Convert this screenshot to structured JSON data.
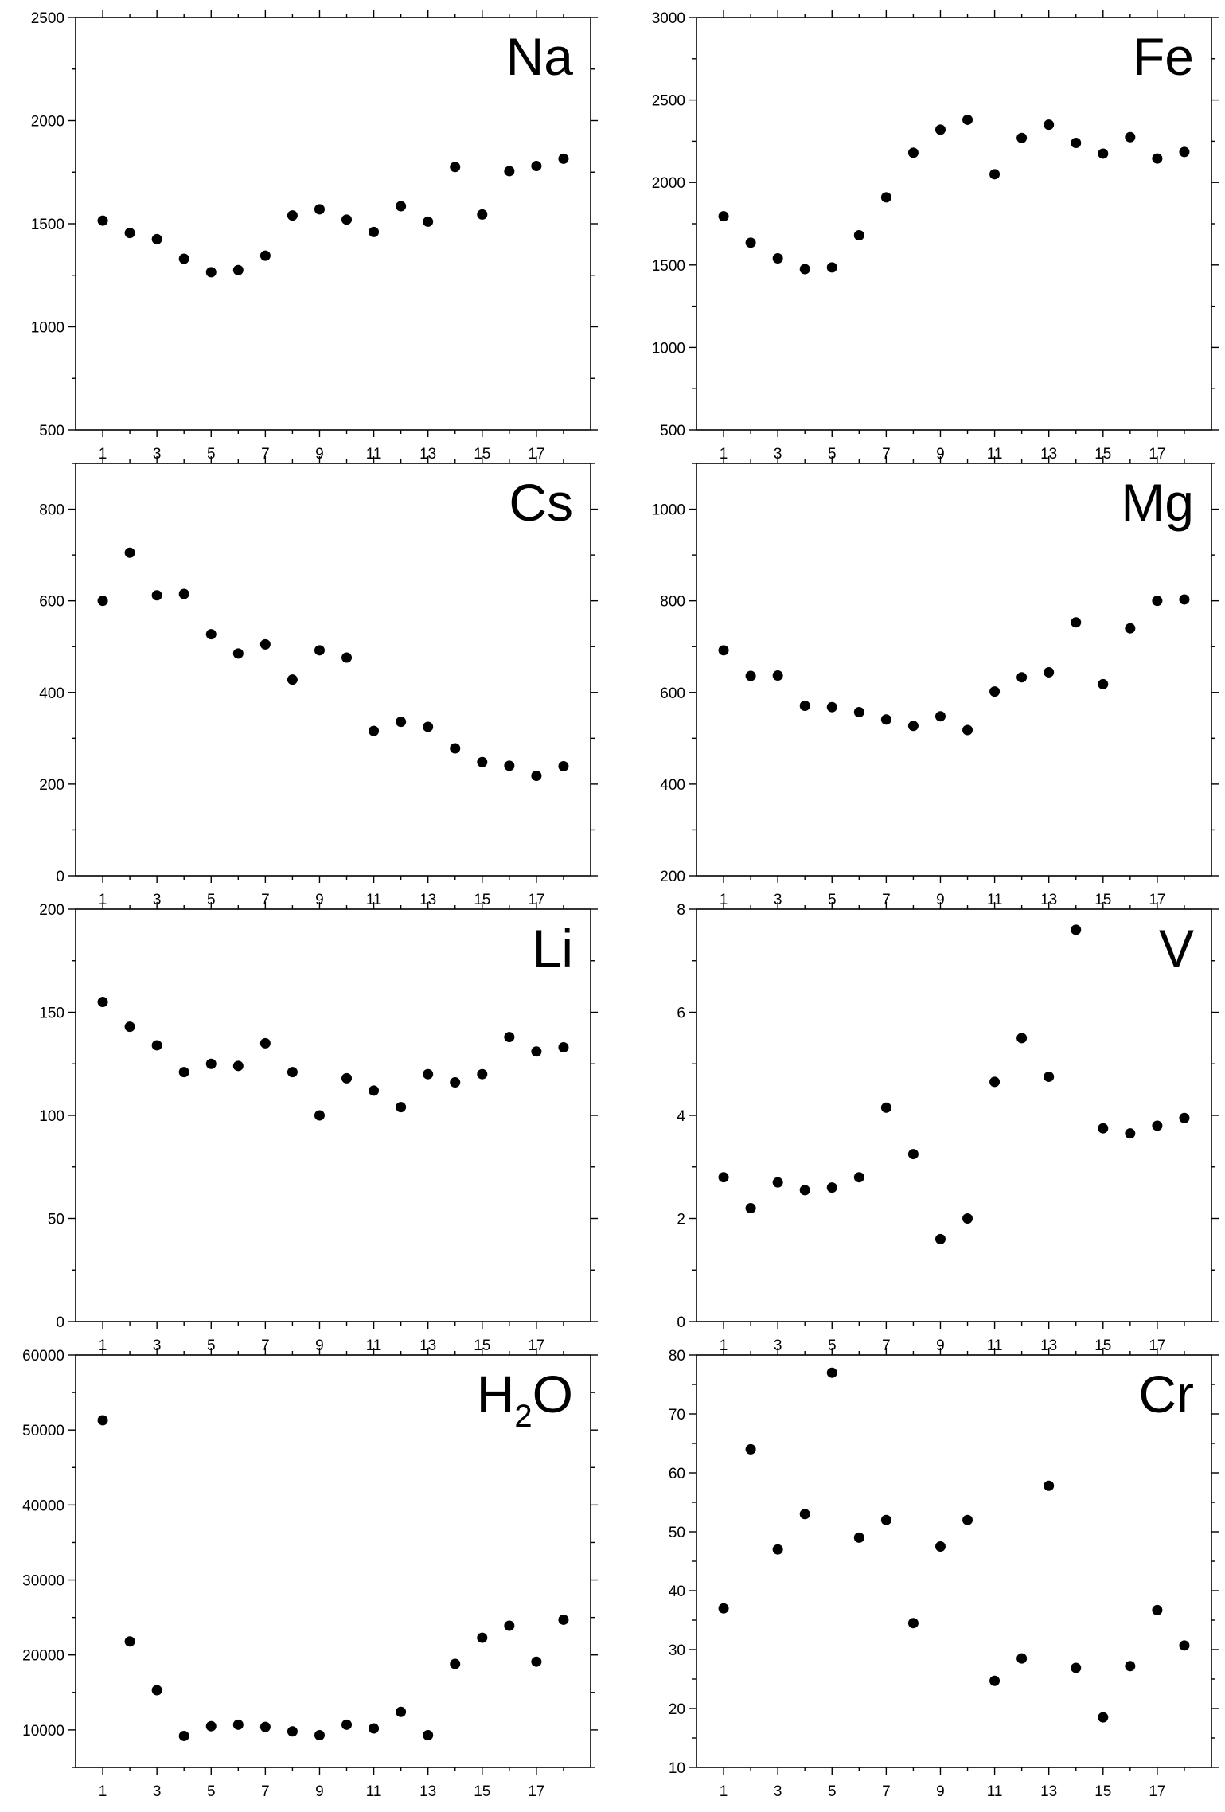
{
  "figure": "8-panel scatter grid",
  "chart_data": [
    {
      "type": "scatter",
      "title": "Na",
      "title_sub": "",
      "title_tail": "",
      "ylim": [
        500,
        2500
      ],
      "yticks": [
        500,
        1000,
        1500,
        2000,
        2500
      ],
      "xlim": [
        0,
        19
      ],
      "xticks": [
        1,
        3,
        5,
        7,
        9,
        11,
        13,
        15,
        17
      ],
      "x": [
        1,
        2,
        3,
        4,
        5,
        6,
        7,
        8,
        9,
        10,
        11,
        12,
        13,
        14,
        15,
        16,
        17,
        18
      ],
      "y": [
        1515,
        1455,
        1425,
        1330,
        1265,
        1275,
        1345,
        1540,
        1570,
        1520,
        1460,
        1585,
        1510,
        1775,
        1545,
        1755,
        1780,
        1815
      ]
    },
    {
      "type": "scatter",
      "title": "Fe",
      "title_sub": "",
      "title_tail": "",
      "ylim": [
        500,
        3000
      ],
      "yticks": [
        500,
        1000,
        1500,
        2000,
        2500,
        3000
      ],
      "xlim": [
        0,
        19
      ],
      "xticks": [
        1,
        3,
        5,
        7,
        9,
        11,
        13,
        15,
        17
      ],
      "x": [
        1,
        2,
        3,
        4,
        5,
        6,
        7,
        8,
        9,
        10,
        11,
        12,
        13,
        14,
        15,
        16,
        17,
        18
      ],
      "y": [
        1795,
        1635,
        1540,
        1475,
        1485,
        1680,
        1910,
        2180,
        2320,
        2380,
        2050,
        2270,
        2350,
        2240,
        2175,
        2275,
        2145,
        2185
      ]
    },
    {
      "type": "scatter",
      "title": "Cs",
      "title_sub": "",
      "title_tail": "",
      "ylim": [
        0,
        900
      ],
      "yticks": [
        0,
        200,
        400,
        600,
        800
      ],
      "xlim": [
        0,
        19
      ],
      "xticks": [
        1,
        3,
        5,
        7,
        9,
        11,
        13,
        15,
        17
      ],
      "x": [
        1,
        2,
        3,
        4,
        5,
        6,
        7,
        8,
        9,
        10,
        11,
        12,
        13,
        14,
        15,
        16,
        17,
        18
      ],
      "y": [
        600,
        705,
        612,
        615,
        527,
        485,
        505,
        428,
        492,
        476,
        316,
        336,
        325,
        278,
        248,
        240,
        218,
        239
      ]
    },
    {
      "type": "scatter",
      "title": "Mg",
      "title_sub": "",
      "title_tail": "",
      "ylim": [
        200,
        1100
      ],
      "yticks": [
        200,
        400,
        600,
        800,
        1000
      ],
      "xlim": [
        0,
        19
      ],
      "xticks": [
        1,
        3,
        5,
        7,
        9,
        11,
        13,
        15,
        17
      ],
      "x": [
        1,
        2,
        3,
        4,
        5,
        6,
        7,
        8,
        9,
        10,
        11,
        12,
        13,
        14,
        15,
        16,
        17,
        18
      ],
      "y": [
        692,
        636,
        637,
        571,
        568,
        557,
        541,
        527,
        548,
        518,
        602,
        633,
        644,
        753,
        618,
        740,
        800,
        803
      ]
    },
    {
      "type": "scatter",
      "title": "Li",
      "title_sub": "",
      "title_tail": "",
      "ylim": [
        0,
        200
      ],
      "yticks": [
        0,
        50,
        100,
        150,
        200
      ],
      "xlim": [
        0,
        19
      ],
      "xticks": [
        1,
        3,
        5,
        7,
        9,
        11,
        13,
        15,
        17
      ],
      "x": [
        1,
        2,
        3,
        4,
        5,
        6,
        7,
        8,
        9,
        10,
        11,
        12,
        13,
        14,
        15,
        16,
        17,
        18
      ],
      "y": [
        155,
        143,
        134,
        121,
        125,
        124,
        135,
        121,
        100,
        118,
        112,
        104,
        120,
        116,
        120,
        138,
        131,
        133
      ]
    },
    {
      "type": "scatter",
      "title": "V",
      "title_sub": "",
      "title_tail": "",
      "ylim": [
        0,
        8
      ],
      "yticks": [
        0,
        2,
        4,
        6,
        8
      ],
      "xlim": [
        0,
        19
      ],
      "xticks": [
        1,
        3,
        5,
        7,
        9,
        11,
        13,
        15,
        17
      ],
      "x": [
        1,
        2,
        3,
        4,
        5,
        6,
        7,
        8,
        9,
        10,
        11,
        12,
        13,
        14,
        15,
        16,
        17,
        18
      ],
      "y": [
        2.8,
        2.2,
        2.7,
        2.55,
        2.6,
        2.8,
        4.15,
        3.25,
        1.6,
        2.0,
        4.65,
        5.5,
        4.75,
        7.6,
        3.75,
        3.65,
        3.8,
        3.95
      ]
    },
    {
      "type": "scatter",
      "title": "H",
      "title_sub": "2",
      "title_tail": "O",
      "ylim": [
        5000,
        60000
      ],
      "yticks": [
        10000,
        20000,
        30000,
        40000,
        50000,
        60000
      ],
      "xlim": [
        0,
        19
      ],
      "xticks": [
        1,
        3,
        5,
        7,
        9,
        11,
        13,
        15,
        17
      ],
      "x": [
        1,
        2,
        3,
        4,
        5,
        6,
        7,
        8,
        9,
        10,
        11,
        12,
        13,
        14,
        15,
        16,
        17,
        18
      ],
      "y": [
        51300,
        21800,
        15300,
        9200,
        10500,
        10700,
        10400,
        9800,
        9300,
        10700,
        10200,
        12400,
        9300,
        18800,
        22300,
        23900,
        19100,
        24700
      ]
    },
    {
      "type": "scatter",
      "title": "Cr",
      "title_sub": "",
      "title_tail": "",
      "ylim": [
        10,
        80
      ],
      "yticks": [
        10,
        20,
        30,
        40,
        50,
        60,
        70,
        80
      ],
      "xlim": [
        0,
        19
      ],
      "xticks": [
        1,
        3,
        5,
        7,
        9,
        11,
        13,
        15,
        17
      ],
      "x": [
        1,
        2,
        3,
        4,
        5,
        6,
        7,
        8,
        9,
        10,
        11,
        12,
        13,
        14,
        15,
        16,
        17,
        18
      ],
      "y": [
        37,
        64,
        47,
        53,
        77,
        49,
        52,
        34.5,
        47.5,
        52,
        24.7,
        28.5,
        57.8,
        26.9,
        18.5,
        27.2,
        36.7,
        30.7
      ]
    }
  ]
}
